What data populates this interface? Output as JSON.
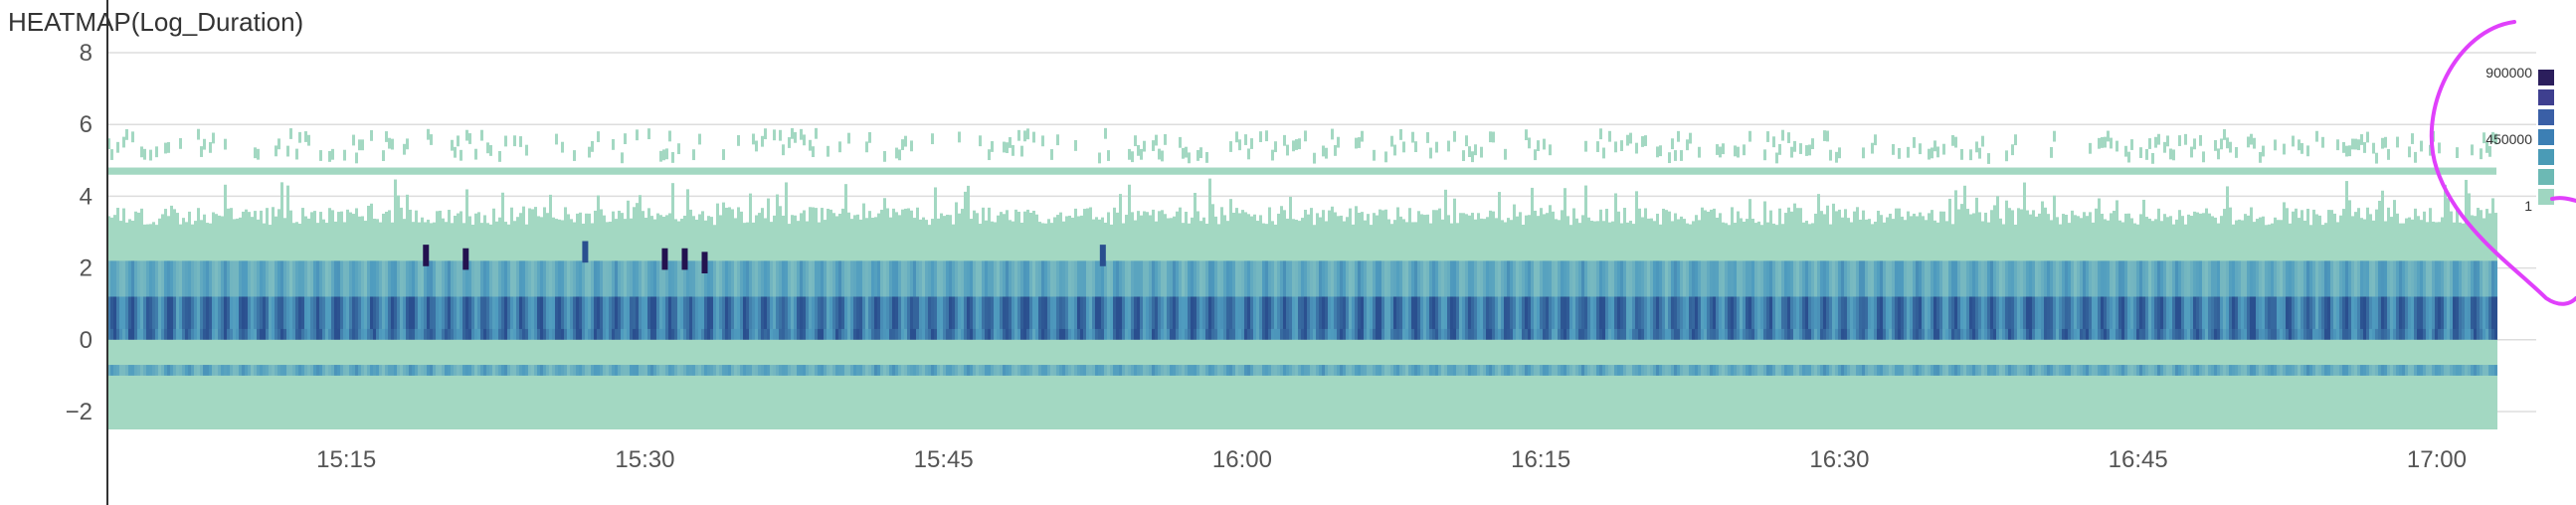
{
  "chart_data": {
    "type": "heatmap",
    "title": "HEATMAP(Log_Duration)",
    "xlabel": "",
    "ylabel": "",
    "x_ticks": [
      "15:15",
      "15:30",
      "15:45",
      "16:00",
      "16:15",
      "16:30",
      "16:45",
      "17:00"
    ],
    "x_range": [
      "15:03",
      "17:03"
    ],
    "y_ticks": [
      8,
      6,
      4,
      2,
      0,
      -2
    ],
    "ylim": [
      -2.5,
      8.5
    ],
    "grid": "horizontal",
    "legend": {
      "position": "right",
      "labels": [
        "900000",
        "450000",
        "1"
      ],
      "scale_max": 900000,
      "scale_mid": 450000,
      "scale_min": 1,
      "colors": [
        "#2b1e5c",
        "#3e3f8f",
        "#3a5fa6",
        "#3c7fb4",
        "#4a9bb6",
        "#6cb9b4",
        "#9fd6c1"
      ]
    },
    "palette": {
      "low": "#a3d8c2",
      "mid": "#4f9cbf",
      "high": "#2a4f8f",
      "peak": "#23124f"
    },
    "density_profile": [
      {
        "y_from": -2.5,
        "y_to": -1.0,
        "level": 0.15
      },
      {
        "y_from": -1.0,
        "y_to": 0.0,
        "level": 0.45
      },
      {
        "y_from": 0.0,
        "y_to": 1.0,
        "level": 0.85
      },
      {
        "y_from": 1.0,
        "y_to": 2.0,
        "level": 0.45
      },
      {
        "y_from": 2.0,
        "y_to": 3.4,
        "level": 0.1
      },
      {
        "y_from": 4.6,
        "y_to": 4.8,
        "level": 0.05
      }
    ],
    "hotspots": [
      {
        "time": "15:19",
        "y": 2.3,
        "level": 1.0
      },
      {
        "time": "15:21",
        "y": 2.2,
        "level": 1.0
      },
      {
        "time": "15:27",
        "y": 2.4,
        "level": 0.9
      },
      {
        "time": "15:31",
        "y": 2.2,
        "level": 1.0
      },
      {
        "time": "15:32",
        "y": 2.2,
        "level": 1.0
      },
      {
        "time": "15:33",
        "y": 2.1,
        "level": 1.0
      },
      {
        "time": "15:53",
        "y": 2.3,
        "level": 0.7
      }
    ]
  },
  "annotation": {
    "color": "#e040fb"
  }
}
